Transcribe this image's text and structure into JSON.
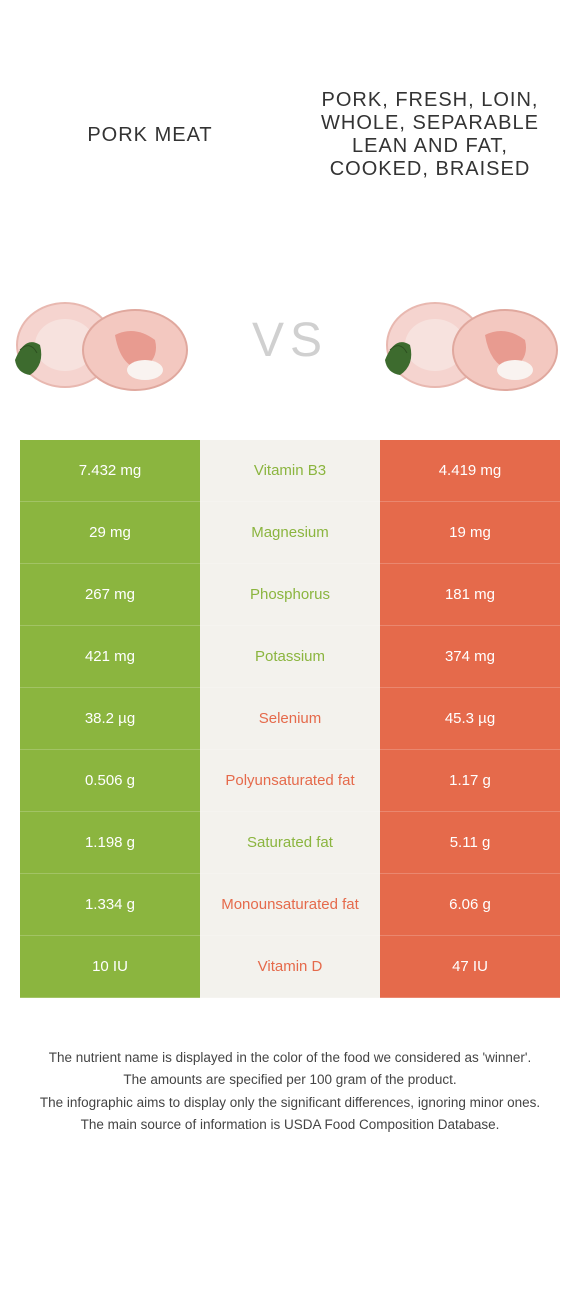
{
  "header": {
    "left_title": "Pork meat",
    "right_title": "Pork, fresh, loin, whole, separable lean and fat, cooked, braised"
  },
  "vs_label": "VS",
  "colors": {
    "green": "#8bb53f",
    "orange": "#e56a4b",
    "mid_bg": "#f3f2ed",
    "vs_color": "#d0d0d0"
  },
  "rows": [
    {
      "left": "7.432 mg",
      "label": "Vitamin B3",
      "right": "4.419 mg",
      "winner": "green"
    },
    {
      "left": "29 mg",
      "label": "Magnesium",
      "right": "19 mg",
      "winner": "green"
    },
    {
      "left": "267 mg",
      "label": "Phosphorus",
      "right": "181 mg",
      "winner": "green"
    },
    {
      "left": "421 mg",
      "label": "Potassium",
      "right": "374 mg",
      "winner": "green"
    },
    {
      "left": "38.2 µg",
      "label": "Selenium",
      "right": "45.3 µg",
      "winner": "orange"
    },
    {
      "left": "0.506 g",
      "label": "Polyunsaturated fat",
      "right": "1.17 g",
      "winner": "orange"
    },
    {
      "left": "1.198 g",
      "label": "Saturated fat",
      "right": "5.11 g",
      "winner": "green"
    },
    {
      "left": "1.334 g",
      "label": "Monounsaturated fat",
      "right": "6.06 g",
      "winner": "orange"
    },
    {
      "left": "10 IU",
      "label": "Vitamin D",
      "right": "47 IU",
      "winner": "orange"
    }
  ],
  "footer": {
    "line1": "The nutrient name is displayed in the color of the food we considered as 'winner'.",
    "line2": "The amounts are specified per 100 gram of the product.",
    "line3": "The infographic aims to display only the significant differences, ignoring minor ones.",
    "line4": "The main source of information is USDA Food Composition Database."
  }
}
